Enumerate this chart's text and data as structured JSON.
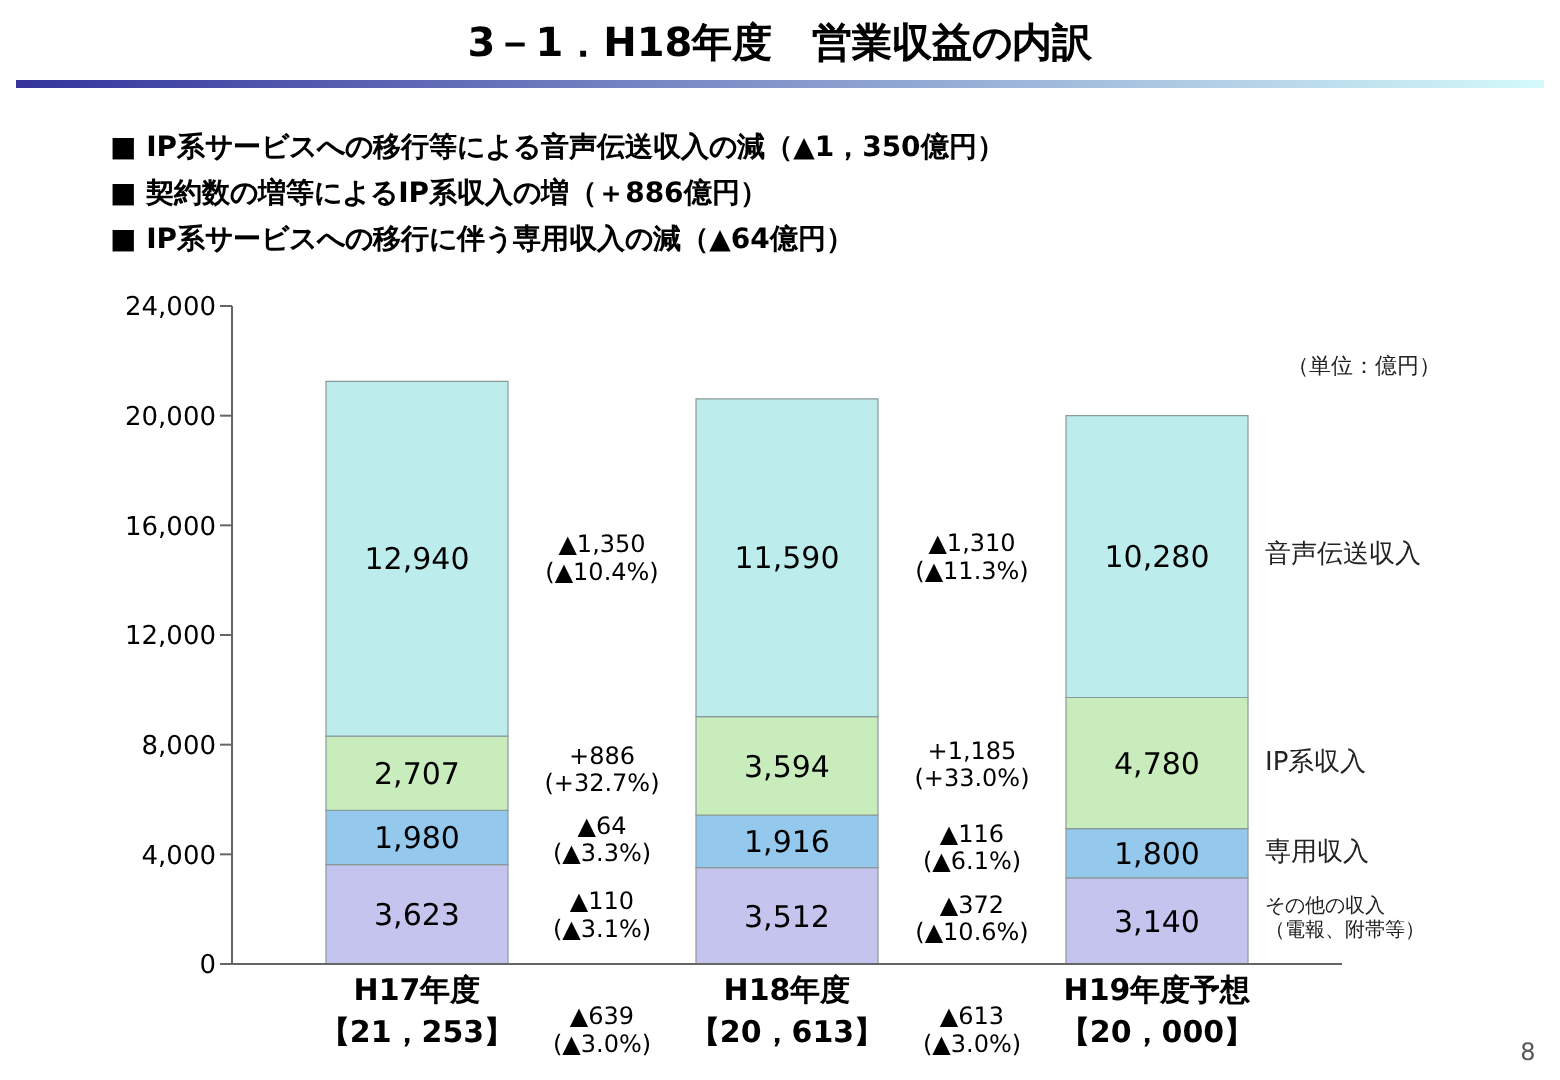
{
  "chart_data": {
    "type": "bar",
    "title": "3－1．H18年度　営業収益の内訳",
    "subtitle": "■ IP系サービスへの移行等による音声伝送収入の減（▲1，350億円）\n■ 契約数の増等によるIP系収入の増（＋886億円）\n■ IP系サービスへの移行に伴う専用収入の減（▲64億円）",
    "categories": [
      "H17年度",
      "H18年度",
      "H19年度予想"
    ],
    "totals": [
      "【21，253】",
      "【20，613】",
      "【20，000】"
    ],
    "stacked": true,
    "series": [
      {
        "name": "その他の収入（電報、附帯等）",
        "color": "#c4c4ee",
        "values": [
          3623,
          3512,
          3140
        ],
        "value_labels": [
          "3,623",
          "3,512",
          "3,140"
        ]
      },
      {
        "name": "専用収入",
        "color": "#94c8ec",
        "values": [
          1980,
          1916,
          1800
        ],
        "value_labels": [
          "1,980",
          "1,916",
          "1,800"
        ]
      },
      {
        "name": "IP系収入",
        "color": "#c8ecbc",
        "values": [
          2707,
          3594,
          4780
        ],
        "value_labels": [
          "2,707",
          "3,594",
          "4,780"
        ]
      },
      {
        "name": "音声伝送収入",
        "color": "#bcecec",
        "values": [
          12940,
          11590,
          10280
        ],
        "value_labels": [
          "12,940",
          "11,590",
          "10,280"
        ]
      }
    ],
    "ylim": [
      0,
      24000
    ],
    "yticks": [
      0,
      {
        "value": 4000,
        "label": "4,000"
      },
      {
        "value": 8000,
        "label": "8,000"
      },
      {
        "value": 12000,
        "label": "12,000"
      },
      {
        "value": 16000,
        "label": "16,000"
      },
      {
        "value": 20000,
        "label": "20,000"
      },
      {
        "value": 24000,
        "label": "24,000"
      }
    ],
    "annotations": [
      "（単位：億円）",
      "▲1,350\n(▲10.4%)",
      "+886\n(+32.7%)",
      "▲64\n(▲3.3%)",
      "▲110\n(▲3.1%)",
      "▲1,310\n(▲11.3%)",
      "+1,185\n(+33.0%)",
      "▲116\n(▲6.1%)",
      "▲372\n(▲10.6%)",
      "▲639\n(▲3.0%)",
      "▲613\n(▲3.0%)",
      "8"
    ]
  }
}
